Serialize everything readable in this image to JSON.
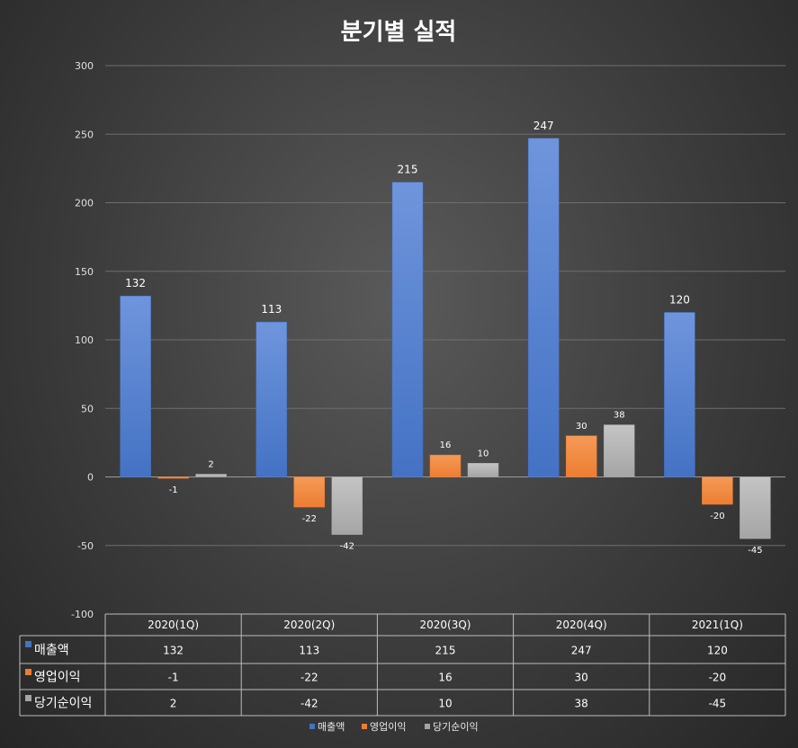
{
  "chart_data": {
    "type": "bar",
    "title": "분기별 실적",
    "categories": [
      "2020(1Q)",
      "2020(2Q)",
      "2020(3Q)",
      "2020(4Q)",
      "2021(1Q)"
    ],
    "series": [
      {
        "name": "매출액",
        "values": [
          132,
          113,
          215,
          247,
          120
        ],
        "color": "#4472C4"
      },
      {
        "name": "영업이익",
        "values": [
          -1,
          -22,
          16,
          30,
          -20
        ],
        "color": "#ED7D31"
      },
      {
        "name": "당기순이익",
        "values": [
          2,
          -42,
          10,
          38,
          -45
        ],
        "color": "#A5A5A5"
      }
    ],
    "ylim": [
      -100,
      300
    ],
    "yticks": [
      300,
      250,
      200,
      150,
      100,
      50,
      0,
      -50,
      -100
    ],
    "grid": true,
    "legend_position": "bottom",
    "data_table": true
  }
}
